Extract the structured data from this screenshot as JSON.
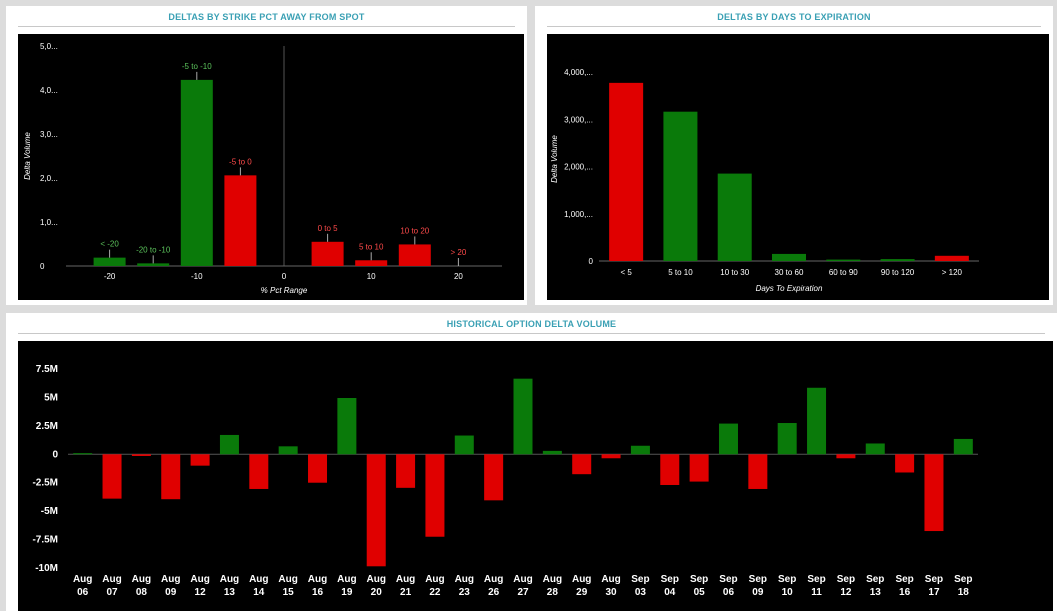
{
  "colors": {
    "positive": "#0a7a0a",
    "negative": "#e00000",
    "background": "#000000",
    "title": "#3aa0b4"
  },
  "panels": {
    "strike": {
      "title": "DELTAS BY STRIKE PCT AWAY FROM SPOT"
    },
    "days": {
      "title": "DELTAS BY DAYS TO EXPIRATION"
    },
    "history": {
      "title": "HISTORICAL OPTION DELTA VOLUME"
    }
  },
  "chart_data": [
    {
      "type": "bar",
      "title": "DELTAS BY STRIKE PCT AWAY FROM SPOT",
      "xlabel": "% Pct Range",
      "ylabel": "Delta Volume",
      "ylim": [
        0,
        5000
      ],
      "xlim": [
        -25,
        25
      ],
      "xticks": [
        "-20",
        "-10",
        "0",
        "10",
        "20"
      ],
      "yticks": [
        "0",
        "1,0...",
        "2,0...",
        "3,0...",
        "4,0...",
        "5,0..."
      ],
      "bars": [
        {
          "label": "< -20",
          "x": -20,
          "value": 190,
          "sign": "positive"
        },
        {
          "label": "-20 to -10",
          "x": -15,
          "value": 60,
          "sign": "positive"
        },
        {
          "label": "-5 to -10",
          "x": -10,
          "value": 4230,
          "sign": "positive"
        },
        {
          "label": "-5 to 0",
          "x": -5,
          "value": 2060,
          "sign": "negative"
        },
        {
          "label": "0 to 5",
          "x": 5,
          "value": 550,
          "sign": "negative"
        },
        {
          "label": "5 to 10",
          "x": 10,
          "value": 130,
          "sign": "negative"
        },
        {
          "label": "10 to 20",
          "x": 15,
          "value": 490,
          "sign": "negative"
        },
        {
          "label": "> 20",
          "x": 20,
          "value": 0,
          "sign": "negative"
        }
      ],
      "grid": false
    },
    {
      "type": "bar",
      "title": "DELTAS BY DAYS TO EXPIRATION",
      "xlabel": "Days To Expiration",
      "ylabel": "Delta Volume",
      "ylim": [
        0,
        4000
      ],
      "yticks": [
        "0",
        "1,000,...",
        "2,000,...",
        "3,000,...",
        "4,000,..."
      ],
      "categories": [
        "< 5",
        "5 to 10",
        "10 to 30",
        "30 to 60",
        "60 to 90",
        "90 to 120",
        "> 120"
      ],
      "values": [
        3770,
        3160,
        1850,
        150,
        30,
        40,
        110
      ],
      "signs": [
        "negative",
        "positive",
        "positive",
        "positive",
        "positive",
        "positive",
        "negative"
      ],
      "grid": false
    },
    {
      "type": "bar",
      "title": "HISTORICAL OPTION DELTA VOLUME",
      "ylim": [
        -10000000,
        7500000
      ],
      "yticks": [
        "7.5M",
        "5M",
        "2.5M",
        "0",
        "-2.5M",
        "-5M",
        "-7.5M",
        "-10M"
      ],
      "categories": [
        [
          "Aug",
          "06"
        ],
        [
          "Aug",
          "07"
        ],
        [
          "Aug",
          "08"
        ],
        [
          "Aug",
          "09"
        ],
        [
          "Aug",
          "12"
        ],
        [
          "Aug",
          "13"
        ],
        [
          "Aug",
          "14"
        ],
        [
          "Aug",
          "15"
        ],
        [
          "Aug",
          "16"
        ],
        [
          "Aug",
          "19"
        ],
        [
          "Aug",
          "20"
        ],
        [
          "Aug",
          "21"
        ],
        [
          "Aug",
          "22"
        ],
        [
          "Aug",
          "23"
        ],
        [
          "Aug",
          "26"
        ],
        [
          "Aug",
          "27"
        ],
        [
          "Aug",
          "28"
        ],
        [
          "Aug",
          "29"
        ],
        [
          "Aug",
          "30"
        ],
        [
          "Sep",
          "03"
        ],
        [
          "Sep",
          "04"
        ],
        [
          "Sep",
          "05"
        ],
        [
          "Sep",
          "06"
        ],
        [
          "Sep",
          "09"
        ],
        [
          "Sep",
          "10"
        ],
        [
          "Sep",
          "11"
        ],
        [
          "Sep",
          "12"
        ],
        [
          "Sep",
          "13"
        ],
        [
          "Sep",
          "16"
        ],
        [
          "Sep",
          "17"
        ],
        [
          "Sep",
          "18"
        ]
      ],
      "values": [
        100000,
        -3900000,
        -150000,
        -3950000,
        -1000000,
        1700000,
        -3050000,
        700000,
        -2500000,
        4950000,
        -9850000,
        -2950000,
        -7250000,
        1650000,
        -4050000,
        6650000,
        300000,
        -1750000,
        -350000,
        750000,
        -2700000,
        -2400000,
        2700000,
        -3050000,
        2750000,
        5850000,
        -350000,
        950000,
        -1600000,
        -6750000,
        1350000
      ],
      "grid": false
    }
  ]
}
